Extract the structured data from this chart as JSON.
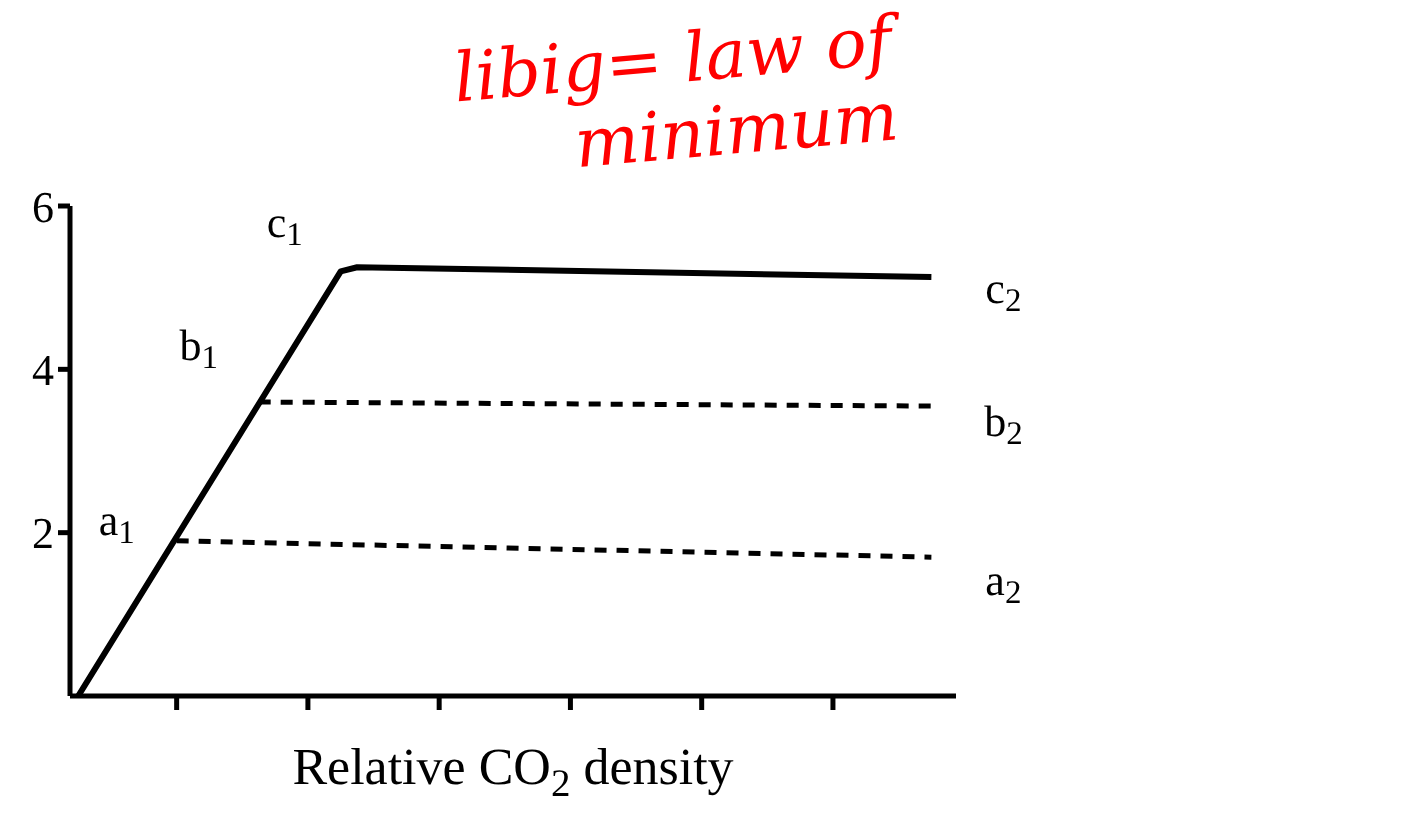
{
  "chart_data": {
    "type": "line",
    "xlabel": "Relative CO$_{2}$ density",
    "categories": [
      null,
      null,
      null,
      null,
      null,
      null,
      null,
      null,
      null,
      null,
      null,
      null,
      null,
      null,
      null,
      null,
      null,
      null,
      null,
      null,
      null,
      null,
      null,
      null,
      null,
      null,
      null,
      null,
      null,
      null,
      null,
      null,
      null,
      null,
      null,
      null,
      null,
      null,
      null,
      null,
      null,
      null,
      null,
      null,
      null,
      null,
      null,
      null,
      null,
      null,
      null,
      null,
      null,
      null
    ],
    "ylim": [
      0,
      6
    ],
    "yticks": [
      2,
      4,
      6
    ],
    "tick_labels": "y",
    "grid": false,
    "legend": false,
    "marker": "none",
    "series": [
      {
        "color": "#000000",
        "line_style": "solid",
        "values": [
          0,
          null,
          null,
          null,
          null,
          null,
          null,
          null,
          null,
          null,
          null,
          null,
          null,
          null,
          null,
          null,
          5.2,
          5.25,
          null,
          null,
          null,
          null,
          null,
          null,
          null,
          null,
          null,
          null,
          null,
          null,
          null,
          null,
          null,
          null,
          null,
          null,
          null,
          null,
          null,
          null,
          null,
          null,
          null,
          null,
          null,
          null,
          null,
          null,
          null,
          null,
          null,
          null,
          5.13,
          null
        ]
      },
      {
        "color": "#000000",
        "line_style": "dashed",
        "values": [
          null,
          null,
          null,
          null,
          null,
          null,
          null,
          null,
          null,
          null,
          null,
          3.6,
          null,
          null,
          null,
          null,
          null,
          null,
          null,
          null,
          null,
          null,
          null,
          null,
          null,
          null,
          null,
          null,
          null,
          null,
          null,
          null,
          null,
          null,
          null,
          null,
          null,
          null,
          null,
          null,
          null,
          null,
          null,
          null,
          null,
          null,
          null,
          null,
          null,
          null,
          null,
          null,
          3.55,
          null
        ]
      },
      {
        "color": "#000000",
        "line_style": "dashed",
        "values": [
          null,
          null,
          null,
          null,
          null,
          null,
          1.9,
          null,
          null,
          null,
          null,
          null,
          null,
          null,
          null,
          null,
          null,
          null,
          null,
          null,
          null,
          null,
          null,
          null,
          null,
          null,
          null,
          null,
          null,
          null,
          null,
          null,
          null,
          null,
          null,
          null,
          null,
          null,
          null,
          null,
          null,
          null,
          null,
          null,
          null,
          null,
          null,
          null,
          null,
          null,
          null,
          null,
          1.7,
          null
        ]
      }
    ],
    "annotations": [
      "a$_{1}$",
      "b$_{1}$",
      "c$_{1}$",
      "c$_{2}$",
      "b$_{2}$",
      "a$_{2}$",
      "libig= law of minimum"
    ]
  }
}
